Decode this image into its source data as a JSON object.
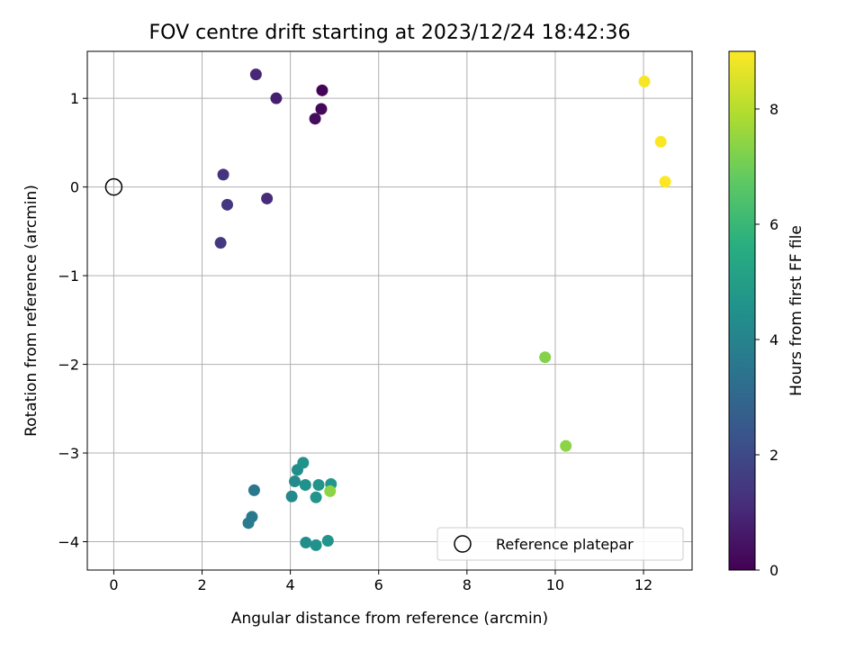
{
  "chart_data": {
    "type": "scatter",
    "title": "FOV centre drift starting at 2023/12/24 18:42:36",
    "xlabel": "Angular distance from reference (arcmin)",
    "ylabel": "Rotation from reference (arcmin)",
    "xlim": [
      -0.6,
      13.1
    ],
    "ylim": [
      -4.32,
      1.53
    ],
    "xticks": [
      0,
      2,
      4,
      6,
      8,
      10,
      12
    ],
    "yticks": [
      -4,
      -3,
      -2,
      -1,
      0,
      1
    ],
    "xtick_labels": [
      "0",
      "2",
      "4",
      "6",
      "8",
      "10",
      "12"
    ],
    "ytick_labels": [
      "−4",
      "−3",
      "−2",
      "−1",
      "0",
      "1"
    ],
    "grid": true,
    "legend_placement": "lower-right",
    "reference": {
      "x": 0,
      "y": 0,
      "label": "Reference platepar"
    },
    "colorbar": {
      "label": "Hours from first FF file",
      "colormap": "viridis",
      "range": [
        0,
        9
      ],
      "ticks": [
        0,
        2,
        4,
        6,
        8
      ],
      "tick_labels": [
        "0",
        "2",
        "4",
        "6",
        "8"
      ]
    },
    "points": [
      {
        "x": 4.72,
        "y": 1.09,
        "hours": 0.1
      },
      {
        "x": 4.7,
        "y": 0.88,
        "hours": 0.2
      },
      {
        "x": 4.56,
        "y": 0.77,
        "hours": 0.3
      },
      {
        "x": 3.68,
        "y": 1.0,
        "hours": 0.8
      },
      {
        "x": 3.22,
        "y": 1.27,
        "hours": 1.0
      },
      {
        "x": 3.47,
        "y": -0.13,
        "hours": 1.1
      },
      {
        "x": 2.48,
        "y": 0.14,
        "hours": 1.3
      },
      {
        "x": 2.57,
        "y": -0.2,
        "hours": 1.4
      },
      {
        "x": 2.42,
        "y": -0.63,
        "hours": 1.5
      },
      {
        "x": 3.18,
        "y": -3.42,
        "hours": 3.6
      },
      {
        "x": 3.13,
        "y": -3.72,
        "hours": 3.6
      },
      {
        "x": 3.05,
        "y": -3.79,
        "hours": 3.7
      },
      {
        "x": 4.03,
        "y": -3.49,
        "hours": 4.2
      },
      {
        "x": 4.1,
        "y": -3.32,
        "hours": 4.3
      },
      {
        "x": 4.16,
        "y": -3.19,
        "hours": 4.4
      },
      {
        "x": 4.29,
        "y": -3.11,
        "hours": 4.5
      },
      {
        "x": 4.34,
        "y": -3.36,
        "hours": 4.5
      },
      {
        "x": 4.58,
        "y": -3.5,
        "hours": 4.6
      },
      {
        "x": 4.64,
        "y": -3.36,
        "hours": 4.6
      },
      {
        "x": 4.92,
        "y": -3.35,
        "hours": 4.7
      },
      {
        "x": 4.35,
        "y": -4.01,
        "hours": 4.4
      },
      {
        "x": 4.58,
        "y": -4.04,
        "hours": 4.5
      },
      {
        "x": 4.85,
        "y": -3.99,
        "hours": 4.6
      },
      {
        "x": 4.9,
        "y": -3.43,
        "hours": 7.4
      },
      {
        "x": 9.77,
        "y": -1.92,
        "hours": 7.3
      },
      {
        "x": 10.24,
        "y": -2.92,
        "hours": 7.4
      },
      {
        "x": 12.02,
        "y": 1.19,
        "hours": 8.9
      },
      {
        "x": 12.39,
        "y": 0.51,
        "hours": 8.95
      },
      {
        "x": 12.49,
        "y": 0.06,
        "hours": 9.0
      }
    ]
  }
}
